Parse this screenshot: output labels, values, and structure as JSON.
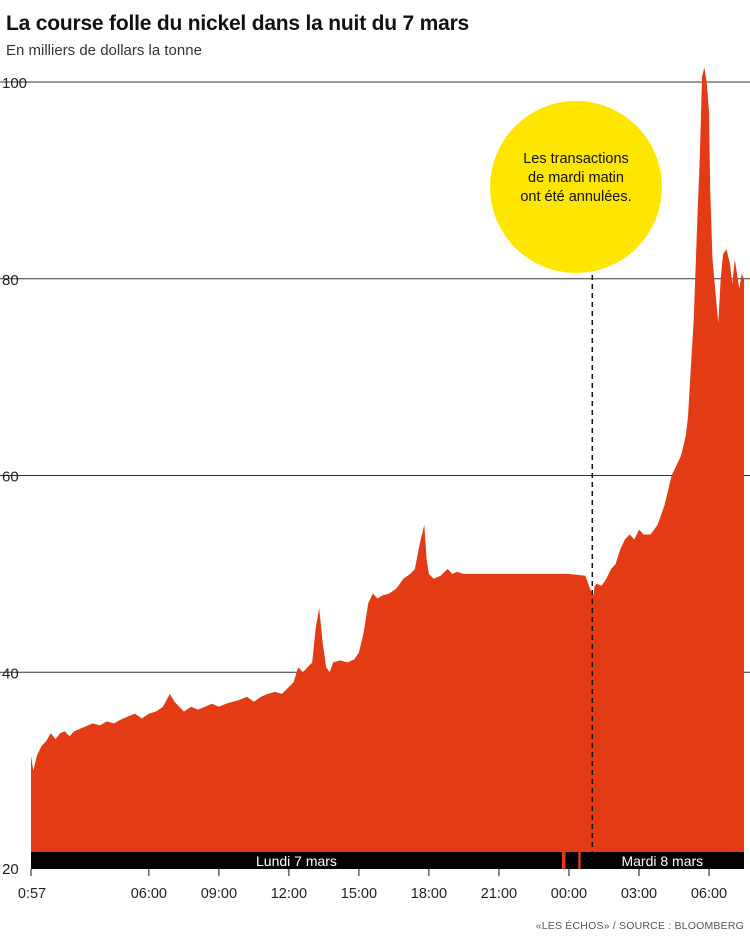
{
  "header": {
    "title": "La course folle du nickel dans la nuit du 7 mars",
    "subtitle": "En milliers de dollars la tonne"
  },
  "footer": {
    "source": "«LES ÉCHOS» / SOURCE : BLOOMBERG"
  },
  "colors": {
    "area": "#e33c14",
    "annotation": "#ffe600",
    "bar": "#000000",
    "grid": "#333333"
  },
  "chart_data": {
    "type": "area",
    "title": "La course folle du nickel dans la nuit du 7 mars",
    "ylabel": "En milliers de dollars la tonne",
    "ylim": [
      20,
      100
    ],
    "yticks": [
      20,
      40,
      60,
      80,
      100
    ],
    "grid": true,
    "xlim_hours": [
      0.95,
      31.5
    ],
    "xticks": [
      {
        "hour": 0.95,
        "label": "0:57"
      },
      {
        "hour": 6,
        "label": "06:00"
      },
      {
        "hour": 9,
        "label": "09:00"
      },
      {
        "hour": 12,
        "label": "12:00"
      },
      {
        "hour": 15,
        "label": "15:00"
      },
      {
        "hour": 18,
        "label": "18:00"
      },
      {
        "hour": 21,
        "label": "21:00"
      },
      {
        "hour": 24,
        "label": "00:00"
      },
      {
        "hour": 27,
        "label": "03:00"
      },
      {
        "hour": 30,
        "label": "06:00"
      }
    ],
    "days": [
      {
        "label": "Lundi 7 mars",
        "start": 0.95,
        "end": 23.7
      },
      {
        "label": "",
        "start": 23.85,
        "end": 24.4
      },
      {
        "label": "Mardi 8 mars",
        "start": 24.5,
        "end": 31.5
      }
    ],
    "annotation": {
      "text": [
        "Les transactions",
        "de mardi matin",
        "ont été annulées."
      ],
      "hour": 25.0
    },
    "series": [
      {
        "x": [
          0.95,
          1.05,
          1.2,
          1.4,
          1.6,
          1.8,
          2.0,
          2.2,
          2.4,
          2.6,
          2.8,
          3.0,
          3.3,
          3.6,
          3.9,
          4.2,
          4.5,
          4.8,
          5.1,
          5.4,
          5.7,
          6.0,
          6.3,
          6.6,
          6.9,
          7.1,
          7.3,
          7.5,
          7.8,
          8.1,
          8.4,
          8.7,
          9.0,
          9.3,
          9.6,
          9.9,
          10.2,
          10.5,
          10.8,
          11.1,
          11.4,
          11.7,
          12.0,
          12.2,
          12.4,
          12.6,
          12.8,
          13.0,
          13.15,
          13.3,
          13.45,
          13.6,
          13.75,
          13.9,
          14.2,
          14.5,
          14.8,
          15.0,
          15.2,
          15.4,
          15.6,
          15.8,
          16.0,
          16.3,
          16.6,
          16.9,
          17.2,
          17.4,
          17.6,
          17.8,
          17.9,
          18.0,
          18.2,
          18.5,
          18.8,
          19.0,
          19.2,
          19.5,
          20.0,
          21.0,
          22.0,
          23.0,
          24.0,
          24.7,
          24.9,
          25.05,
          25.1,
          25.2,
          25.4,
          25.6,
          25.8,
          26.0,
          26.2,
          26.4,
          26.6,
          26.8,
          27.0,
          27.2,
          27.5,
          27.8,
          28.1,
          28.4,
          28.6,
          28.8,
          29.0,
          29.1,
          29.2,
          29.35,
          29.5,
          29.6,
          29.7,
          29.8,
          29.9,
          30.0,
          30.05,
          30.15,
          30.3,
          30.4,
          30.5,
          30.6,
          30.75,
          30.9,
          31.0,
          31.1,
          31.2,
          31.3,
          31.4,
          31.5
        ],
        "y": [
          31.5,
          30.0,
          31.5,
          32.5,
          33.0,
          33.8,
          33.2,
          33.8,
          34.0,
          33.5,
          34.0,
          34.2,
          34.5,
          34.8,
          34.6,
          35.0,
          34.8,
          35.2,
          35.5,
          35.8,
          35.3,
          35.8,
          36.0,
          36.5,
          37.8,
          37.0,
          36.5,
          36.0,
          36.5,
          36.2,
          36.5,
          36.8,
          36.5,
          36.8,
          37.0,
          37.2,
          37.5,
          37.0,
          37.5,
          37.8,
          38.0,
          37.8,
          38.5,
          39.0,
          40.5,
          40.0,
          40.5,
          41.0,
          44.5,
          46.5,
          43.0,
          40.5,
          40.0,
          41.0,
          41.2,
          41.0,
          41.3,
          42.0,
          44.0,
          47.0,
          48.0,
          47.5,
          47.8,
          48.0,
          48.5,
          49.5,
          50.0,
          50.5,
          53.0,
          55.0,
          51.5,
          50.0,
          49.5,
          49.8,
          50.5,
          50.0,
          50.2,
          50.0,
          50.0,
          50.0,
          50.0,
          50.0,
          50.0,
          49.8,
          48.5,
          47.8,
          48.8,
          49.0,
          48.8,
          49.5,
          50.5,
          51.0,
          52.5,
          53.5,
          54.0,
          53.5,
          54.5,
          54.0,
          54.0,
          55.0,
          57.0,
          60.0,
          61.0,
          62.0,
          64.0,
          66.0,
          70.0,
          76.0,
          86.0,
          92.0,
          100.5,
          101.5,
          100.0,
          97.0,
          89.0,
          82.0,
          78.0,
          75.5,
          80.0,
          82.5,
          83.0,
          81.5,
          79.5,
          82.0,
          80.5,
          79.0,
          80.5,
          80.0
        ]
      }
    ]
  }
}
